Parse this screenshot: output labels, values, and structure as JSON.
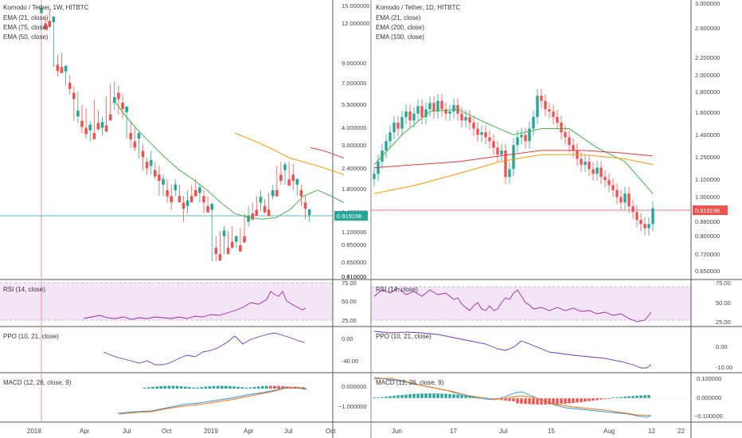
{
  "colors": {
    "up": "#26a69a",
    "down": "#ef5350",
    "ema21": "#4caf50",
    "ema75": "#ff9800",
    "ema50": "#e53935",
    "ema200": "#ff9800",
    "ema100": "#e53935",
    "rsi": "#9c27b0",
    "ppo": "#673ab7",
    "macd": "#2196f3",
    "signal": "#ff6d00",
    "rsi_band": "#f3e5f5",
    "price_line_left": "#26a69a",
    "price_line_right": "#ef5350"
  },
  "left": {
    "title": "Komodo / Tether, 1W, HITBTC",
    "indicators": [
      "EMA (21, close)",
      "EMA (75, close)",
      "EMA (50, close)"
    ],
    "price_axis": [
      "15.000000",
      "12.000000",
      "9.000000",
      "7.000000",
      "5.500000",
      "4.000000",
      "3.000000",
      "2.400000",
      "1.800000",
      "1.400000",
      "1.100000",
      "0.850000",
      "0.650000",
      "0.510000",
      "0.410000"
    ],
    "last_price": "0.919196",
    "rsi_label": "RSI (14, close)",
    "rsi_axis": [
      "75.00",
      "50.00",
      "25.00"
    ],
    "ppo_label": "PPO (10, 21, close)",
    "ppo_axis": [
      "0.00",
      "-40.00"
    ],
    "macd_label": "MACD (12, 26, close, 9)",
    "macd_axis": [
      "0.000000",
      "−1.000000"
    ],
    "time_axis": [
      "2018",
      "Apr",
      "Jul",
      "Oct",
      "2019",
      "Apr",
      "Jul",
      "Oct"
    ]
  },
  "right": {
    "title": "Komodo / Tether, 1D, HITBTC",
    "indicators": [
      "EMA (21, close)",
      "EMA (200, close)",
      "EMA (100, close)"
    ],
    "price_axis": [
      "3.000000",
      "2.600000",
      "2.200000",
      "2.000000",
      "1.800000",
      "1.600000",
      "1.400000",
      "1.250000",
      "1.100000",
      "1.000000",
      "0.880000",
      "0.800000",
      "0.720000",
      "0.650000"
    ],
    "last_price": "0.919196",
    "rsi_label": "RSI (14, close)",
    "rsi_axis": [
      "75.00",
      "50.00",
      "25.00"
    ],
    "ppo_label": "PPO (10, 21, close)",
    "ppo_axis": [
      "0.00",
      "-10.00"
    ],
    "macd_label": "MACD (12, 26, close, 9)",
    "macd_axis": [
      "0.100000",
      "0.000000",
      "−0.100000"
    ],
    "time_axis": [
      "Jun",
      "17",
      "Jul",
      "15",
      "Aug",
      "12",
      "22"
    ]
  },
  "chart_data": [
    {
      "type": "candlestick",
      "title": "Komodo / Tether, 1W, HITBTC",
      "scale": "log",
      "ylim": [
        0.4,
        16
      ],
      "x_range": [
        "2017-12-18",
        "2019-10-07"
      ],
      "last_price": 0.919196,
      "series": [
        {
          "name": "EMA (21, close)",
          "points": [
            [
              52,
              4.4
            ],
            [
              60,
              3.6
            ],
            [
              70,
              2.9
            ],
            [
              80,
              2.4
            ],
            [
              90,
              2.0
            ],
            [
              100,
              1.7
            ],
            [
              110,
              1.5
            ],
            [
              120,
              1.3
            ],
            [
              130,
              1.1
            ],
            [
              140,
              0.95
            ],
            [
              150,
              0.9
            ],
            [
              160,
              0.88
            ],
            [
              170,
              0.9
            ],
            [
              180,
              1.0
            ],
            [
              190,
              1.2
            ],
            [
              200,
              1.3
            ],
            [
              210,
              1.2
            ],
            [
              219,
              1.1
            ]
          ]
        },
        {
          "name": "EMA (75, close)",
          "points": [
            [
              140,
              2.8
            ],
            [
              150,
              2.6
            ],
            [
              160,
              2.4
            ],
            [
              170,
              2.2
            ],
            [
              180,
              2.0
            ],
            [
              190,
              1.9
            ],
            [
              200,
              1.8
            ],
            [
              210,
              1.7
            ],
            [
              219,
              1.6
            ]
          ]
        },
        {
          "name": "EMA (50, close)",
          "points": [
            [
              195,
              2.3
            ],
            [
              205,
              2.2
            ],
            [
              212,
              2.1
            ],
            [
              219,
              2.0
            ]
          ]
        }
      ],
      "candles": [
        [
          12,
          14,
          11.5,
          12.2
        ],
        [
          13,
          12.2,
          13.2,
          11.8
        ],
        [
          14,
          12.6,
          14.8,
          12
        ],
        [
          15,
          12.4,
          12.9,
          6.8
        ],
        [
          16,
          7.0,
          8.0,
          6.0
        ],
        [
          17,
          6.8,
          8.2,
          6.3
        ],
        [
          18,
          6.4,
          6.8,
          5.3
        ],
        [
          19,
          5.5,
          6.1,
          4.7
        ],
        [
          20,
          4.8,
          5.2,
          3.3
        ],
        [
          21,
          3.5,
          4.9,
          3.2
        ],
        [
          22,
          3.3,
          4.1,
          2.8
        ],
        [
          23,
          3.0,
          3.9,
          2.6
        ],
        [
          24,
          2.9,
          3.3,
          2.5
        ],
        [
          25,
          2.8,
          4.4,
          2.7
        ],
        [
          26,
          3.2,
          3.8,
          2.9
        ],
        [
          27,
          3.0,
          3.5,
          2.7
        ],
        [
          28,
          3.1,
          4.6,
          2.9
        ],
        [
          29,
          3.6,
          5.4,
          3.3
        ],
        [
          30,
          4.2,
          5.6,
          3.8
        ],
        [
          31,
          4.8,
          5.3,
          3.6
        ],
        [
          32,
          4.2,
          4.7,
          3.4
        ],
        [
          33,
          3.7,
          3.9,
          2.6
        ],
        [
          34,
          2.8,
          3.3,
          2.3
        ],
        [
          35,
          2.5,
          3.0,
          2.2
        ],
        [
          36,
          2.6,
          2.8,
          2.0
        ],
        [
          37,
          2.2,
          2.4,
          1.7
        ],
        [
          38,
          1.9,
          2.0,
          1.6
        ],
        [
          39,
          1.8,
          2.2,
          1.6
        ],
        [
          40,
          1.7,
          1.9,
          1.5
        ],
        [
          41,
          1.6,
          1.8,
          1.2
        ],
        [
          42,
          1.4,
          1.6,
          1.2
        ],
        [
          43,
          1.3,
          1.5,
          1.1
        ],
        [
          44,
          1.2,
          1.4,
          1.0
        ],
        [
          45,
          1.3,
          1.5,
          1.2
        ],
        [
          46,
          1.2,
          1.4,
          1.1
        ],
        [
          47,
          1.1,
          1.2,
          0.85
        ],
        [
          48,
          1.05,
          1.3,
          0.95
        ],
        [
          49,
          1.2,
          1.4,
          1.1
        ],
        [
          50,
          1.3,
          1.5,
          1.2
        ],
        [
          51,
          1.25,
          1.4,
          1.1
        ],
        [
          52,
          1.2,
          1.3,
          0.95
        ],
        [
          53,
          1.05,
          1.2,
          0.95
        ],
        [
          54,
          1.0,
          1.1,
          0.5
        ],
        [
          55,
          0.6,
          0.7,
          0.5
        ],
        [
          56,
          0.55,
          0.75,
          0.5
        ],
        [
          57,
          0.7,
          0.8,
          0.55
        ],
        [
          58,
          0.6,
          0.75,
          0.55
        ],
        [
          59,
          0.65,
          0.8,
          0.6
        ],
        [
          60,
          0.65,
          0.7,
          0.6
        ],
        [
          61,
          0.62,
          0.78,
          0.6
        ],
        [
          62,
          0.7,
          0.95,
          0.65
        ],
        [
          63,
          0.85,
          1.05,
          0.8
        ],
        [
          64,
          0.95,
          1.1,
          0.9
        ],
        [
          65,
          1.0,
          1.2,
          0.95
        ],
        [
          66,
          1.1,
          1.3,
          0.98
        ],
        [
          67,
          1.05,
          1.15,
          0.95
        ],
        [
          68,
          1.0,
          1.25,
          0.95
        ],
        [
          69,
          1.2,
          1.4,
          1.15
        ],
        [
          70,
          1.3,
          1.8,
          1.2
        ],
        [
          71,
          1.6,
          1.9,
          1.4
        ],
        [
          72,
          1.7,
          1.9,
          1.4
        ],
        [
          73,
          1.5,
          1.9,
          1.4
        ],
        [
          74,
          1.6,
          1.85,
          1.3
        ],
        [
          75,
          1.4,
          1.5,
          1.2
        ],
        [
          76,
          1.3,
          1.4,
          1.05
        ],
        [
          77,
          1.1,
          1.2,
          0.88
        ],
        [
          78,
          0.93,
          1.0,
          0.85
        ]
      ]
    },
    {
      "type": "candlestick",
      "title": "Komodo / Tether, 1D, HITBTC",
      "scale": "log",
      "ylim": [
        0.62,
        3.0
      ],
      "x_range": [
        "2019-05-24",
        "2019-08-26"
      ],
      "last_price": 0.919196,
      "series": [
        {
          "name": "EMA (21, close)",
          "points": [
            [
              0,
              1.18
            ],
            [
              10,
              1.4
            ],
            [
              20,
              1.6
            ],
            [
              30,
              1.62
            ],
            [
              40,
              1.5
            ],
            [
              50,
              1.4
            ],
            [
              60,
              1.45
            ],
            [
              70,
              1.45
            ],
            [
              80,
              1.3
            ],
            [
              90,
              1.2
            ],
            [
              100,
              1.0
            ]
          ]
        },
        {
          "name": "EMA (200, close)",
          "points": [
            [
              0,
              1.0
            ],
            [
              15,
              1.05
            ],
            [
              30,
              1.12
            ],
            [
              45,
              1.2
            ],
            [
              60,
              1.25
            ],
            [
              75,
              1.25
            ],
            [
              90,
              1.22
            ],
            [
              100,
              1.18
            ]
          ]
        },
        {
          "name": "EMA (100, close)",
          "points": [
            [
              0,
              1.16
            ],
            [
              15,
              1.18
            ],
            [
              30,
              1.2
            ],
            [
              45,
              1.24
            ],
            [
              60,
              1.28
            ],
            [
              75,
              1.28
            ],
            [
              90,
              1.26
            ],
            [
              100,
              1.24
            ]
          ]
        }
      ]
    }
  ]
}
